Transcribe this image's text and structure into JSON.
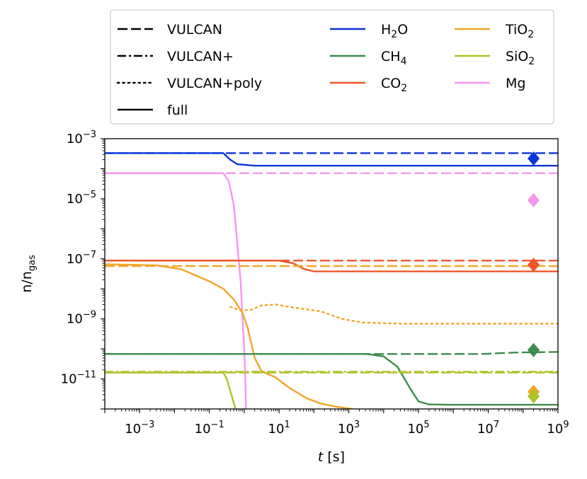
{
  "chart_data": {
    "type": "line",
    "xlabel_var": "t",
    "xlabel_unit": "[s]",
    "ylabel_base": "n/n",
    "ylabel_sub": "gas",
    "xscale": "log",
    "yscale": "log",
    "xlim_exp": [
      -4,
      9
    ],
    "ylim_exp": [
      -12,
      -3
    ],
    "x_ticks": [
      {
        "base": "10",
        "exp": "−3",
        "value": -3
      },
      {
        "base": "10",
        "exp": "−1",
        "value": -1
      },
      {
        "base": "10",
        "exp": "1",
        "value": 1
      },
      {
        "base": "10",
        "exp": "3",
        "value": 3
      },
      {
        "base": "10",
        "exp": "5",
        "value": 5
      },
      {
        "base": "10",
        "exp": "7",
        "value": 7
      },
      {
        "base": "10",
        "exp": "9",
        "value": 9
      }
    ],
    "y_ticks": [
      {
        "base": "10",
        "exp": "−3",
        "value": -3
      },
      {
        "base": "10",
        "exp": "−5",
        "value": -5
      },
      {
        "base": "10",
        "exp": "−7",
        "value": -7
      },
      {
        "base": "10",
        "exp": "−9",
        "value": -9
      },
      {
        "base": "10",
        "exp": "−11",
        "value": -11
      }
    ],
    "legend_styles": [
      {
        "label": "VULCAN",
        "dash": "dashed"
      },
      {
        "label": "VULCAN+",
        "dash": "dashdot"
      },
      {
        "label": "VULCAN+poly",
        "dash": "dotted"
      },
      {
        "label": "full",
        "dash": "solid"
      }
    ],
    "legend_species": [
      {
        "base": "H",
        "sub": "2",
        "tail": "O",
        "color": "#0a34dc"
      },
      {
        "base": "CH",
        "sub": "4",
        "tail": "",
        "color": "#3c8c4b"
      },
      {
        "base": "CO",
        "sub": "2",
        "tail": "",
        "color": "#ee5528"
      },
      {
        "base": "TiO",
        "sub": "2",
        "tail": "",
        "color": "#f2a628"
      },
      {
        "base": "SiO",
        "sub": "2",
        "tail": "",
        "color": "#b0c12a"
      },
      {
        "base": "Mg",
        "sub": "",
        "tail": "",
        "color": "#f896ee"
      }
    ],
    "series": [
      {
        "species": "H2O",
        "model": "VULCAN",
        "dash": "dashed",
        "color": "#0a34dc",
        "points": [
          [
            -4,
            -3.48
          ],
          [
            9,
            -3.48
          ]
        ]
      },
      {
        "species": "H2O",
        "model": "full",
        "dash": "solid",
        "color": "#0a34dc",
        "points": [
          [
            -4,
            -3.48
          ],
          [
            -0.6,
            -3.48
          ],
          [
            -0.4,
            -3.7
          ],
          [
            -0.2,
            -3.85
          ],
          [
            0.3,
            -3.9
          ],
          [
            9,
            -3.9
          ]
        ]
      },
      {
        "species": "Mg",
        "model": "VULCAN",
        "dash": "dashed",
        "color": "#f896ee",
        "points": [
          [
            -4,
            -4.15
          ],
          [
            9,
            -4.15
          ]
        ]
      },
      {
        "species": "Mg",
        "model": "full",
        "dash": "solid",
        "color": "#f896ee",
        "points": [
          [
            -4,
            -4.15
          ],
          [
            -0.6,
            -4.15
          ],
          [
            -0.45,
            -4.4
          ],
          [
            -0.3,
            -5.2
          ],
          [
            -0.2,
            -6.5
          ],
          [
            -0.1,
            -7.8
          ],
          [
            -0.05,
            -9.0
          ],
          [
            0.0,
            -10.0
          ],
          [
            0.03,
            -11.0
          ],
          [
            0.05,
            -12.0
          ]
        ]
      },
      {
        "species": "CO2",
        "model": "VULCAN",
        "dash": "dashed",
        "color": "#ee5528",
        "points": [
          [
            -4,
            -7.06
          ],
          [
            9,
            -7.06
          ]
        ]
      },
      {
        "species": "CO2",
        "model": "full",
        "dash": "solid",
        "color": "#ee5528",
        "points": [
          [
            -4,
            -7.06
          ],
          [
            1.0,
            -7.06
          ],
          [
            1.4,
            -7.15
          ],
          [
            1.7,
            -7.33
          ],
          [
            2.0,
            -7.42
          ],
          [
            9,
            -7.42
          ]
        ]
      },
      {
        "species": "TiO2",
        "model": "VULCAN",
        "dash": "dashed",
        "color": "#f2a628",
        "points": [
          [
            -4,
            -7.24
          ],
          [
            9,
            -7.24
          ]
        ]
      },
      {
        "species": "TiO2",
        "model": "VULCAN+poly",
        "dash": "dotted",
        "color": "#f2a628",
        "points": [
          [
            -0.4,
            -8.6
          ],
          [
            -0.1,
            -8.72
          ],
          [
            0.2,
            -8.7
          ],
          [
            0.5,
            -8.55
          ],
          [
            0.9,
            -8.52
          ],
          [
            1.3,
            -8.6
          ],
          [
            2.2,
            -8.75
          ],
          [
            2.8,
            -9.0
          ],
          [
            3.4,
            -9.12
          ],
          [
            4.5,
            -9.16
          ],
          [
            9,
            -9.16
          ]
        ]
      },
      {
        "species": "TiO2",
        "model": "full",
        "dash": "solid",
        "color": "#f2a628",
        "points": [
          [
            -4,
            -7.18
          ],
          [
            -2.5,
            -7.22
          ],
          [
            -1.8,
            -7.35
          ],
          [
            -1.0,
            -7.75
          ],
          [
            -0.6,
            -8.0
          ],
          [
            -0.3,
            -8.35
          ],
          [
            -0.05,
            -8.8
          ],
          [
            0.1,
            -9.3
          ],
          [
            0.3,
            -10.3
          ],
          [
            0.5,
            -10.75
          ],
          [
            0.9,
            -10.95
          ],
          [
            1.3,
            -11.3
          ],
          [
            1.8,
            -11.65
          ],
          [
            2.2,
            -11.82
          ],
          [
            2.6,
            -11.92
          ],
          [
            3.1,
            -12.0
          ]
        ]
      },
      {
        "species": "CH4",
        "model": "VULCAN",
        "dash": "dashed",
        "color": "#3c8c4b",
        "points": [
          [
            -4,
            -10.17
          ],
          [
            6.8,
            -10.17
          ],
          [
            7.8,
            -10.12
          ],
          [
            9,
            -10.1
          ]
        ]
      },
      {
        "species": "CH4",
        "model": "full",
        "dash": "solid",
        "color": "#3c8c4b",
        "points": [
          [
            -4,
            -10.17
          ],
          [
            3.5,
            -10.17
          ],
          [
            4.0,
            -10.25
          ],
          [
            4.4,
            -10.6
          ],
          [
            4.75,
            -11.3
          ],
          [
            5.0,
            -11.75
          ],
          [
            5.3,
            -11.85
          ],
          [
            6.0,
            -11.86
          ],
          [
            9,
            -11.86
          ]
        ]
      },
      {
        "species": "SiO2",
        "model": "VULCAN",
        "dash": "dashed",
        "color": "#b0c12a",
        "points": [
          [
            -4,
            -10.79
          ],
          [
            9,
            -10.79
          ]
        ]
      },
      {
        "species": "SiO2",
        "model": "VULCAN+",
        "dash": "dashdot",
        "color": "#b0c12a",
        "points": [
          [
            -4,
            -10.76
          ],
          [
            9,
            -10.76
          ]
        ]
      },
      {
        "species": "SiO2",
        "model": "full",
        "dash": "solid",
        "color": "#b0c12a",
        "points": [
          [
            -4,
            -10.79
          ],
          [
            -0.6,
            -10.79
          ],
          [
            -0.5,
            -11.0
          ],
          [
            -0.35,
            -11.6
          ],
          [
            -0.25,
            -12.0
          ]
        ]
      }
    ],
    "markers": [
      {
        "species": "H2O",
        "x": 8.3,
        "y": -3.66,
        "color": "#0a34dc"
      },
      {
        "species": "Mg",
        "x": 8.3,
        "y": -5.05,
        "color": "#f896ee"
      },
      {
        "species": "CO2",
        "x": 8.3,
        "y": -7.2,
        "color": "#ee5528"
      },
      {
        "species": "CH4",
        "x": 8.3,
        "y": -10.04,
        "color": "#3c8c4b"
      },
      {
        "species": "TiO2",
        "x": 8.3,
        "y": -11.43,
        "color": "#f2a628"
      },
      {
        "species": "SiO2",
        "x": 8.3,
        "y": -11.58,
        "color": "#b0c12a"
      }
    ]
  }
}
